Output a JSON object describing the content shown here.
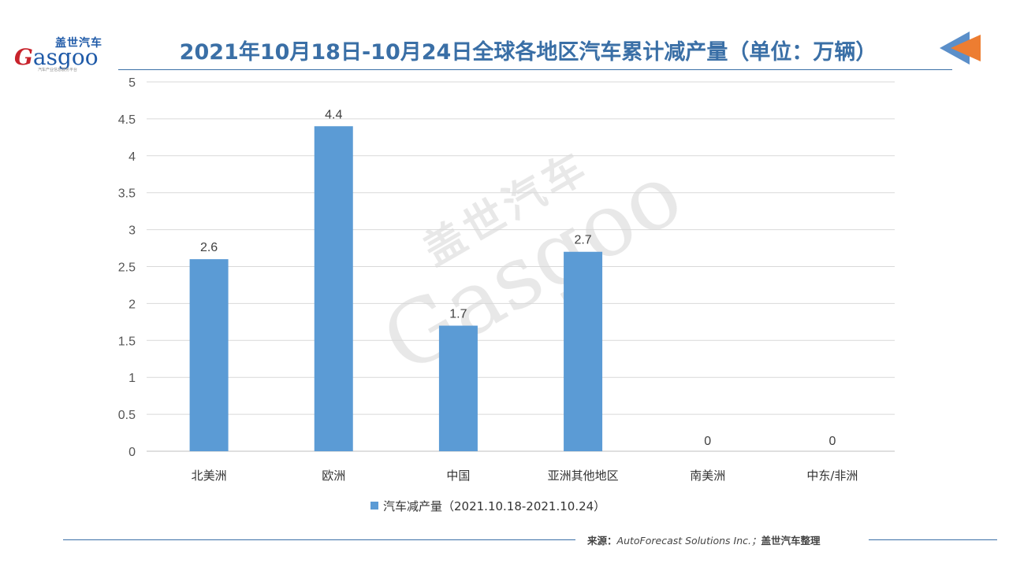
{
  "header": {
    "logo_cn": "盖世汽车",
    "logo_en_initial": "G",
    "logo_en_rest": "asgoo",
    "logo_tagline": "汽车产业信息服务平台",
    "title": "2021年10月18日-10月24日全球各地区汽车累计减产量（单位：万辆）"
  },
  "chart_data": {
    "type": "bar",
    "title": "2021年10月18日-10月24日全球各地区汽车累计减产量（单位：万辆）",
    "categories": [
      "北美洲",
      "欧洲",
      "中国",
      "亚洲其他地区",
      "南美洲",
      "中东/非洲"
    ],
    "series": [
      {
        "name": "汽车减产量（2021.10.18-2021.10.24）",
        "values": [
          2.6,
          4.4,
          1.7,
          2.7,
          0,
          0
        ]
      }
    ],
    "data_labels": [
      "2.6",
      "4.4",
      "1.7",
      "2.7",
      "0",
      "0"
    ],
    "y_ticks": [
      "0",
      "0.5",
      "1",
      "1.5",
      "2",
      "2.5",
      "3",
      "3.5",
      "4",
      "4.5",
      "5"
    ],
    "ylim": [
      0,
      5
    ],
    "grid": true,
    "legend_position": "bottom",
    "bar_color": "#5b9bd5"
  },
  "watermark": {
    "cn": "盖世汽车",
    "en": "Gasgoo"
  },
  "footer": {
    "source_label": "来源：",
    "source_text": "AutoForecast Solutions Inc.；",
    "source_org": "盖世汽车整理"
  },
  "colors": {
    "title": "#3a6fa6",
    "bar": "#5b9bd5",
    "arrow_blue": "#5b8fc9",
    "arrow_orange": "#ed7d31"
  }
}
